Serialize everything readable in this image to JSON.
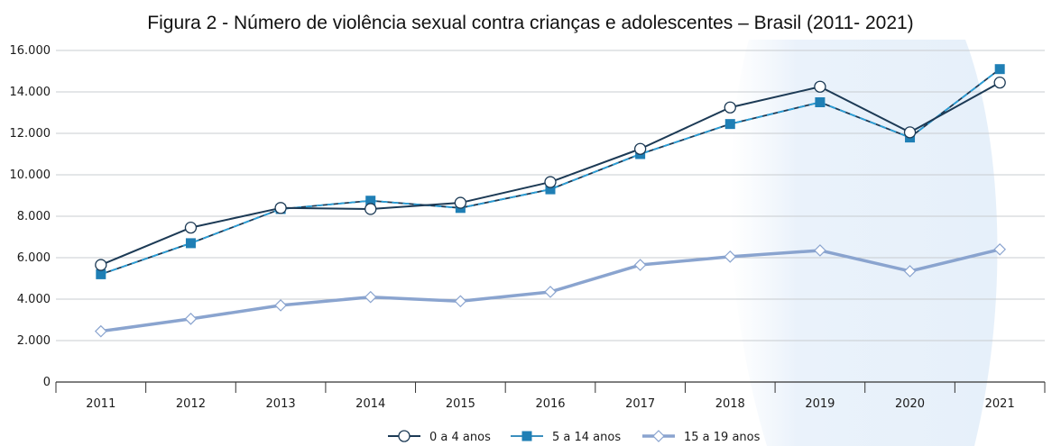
{
  "chart_data": {
    "type": "line",
    "title": "Figura 2 - Número de violência sexual contra crianças e adolescentes – Brasil (2011- 2021)",
    "categories": [
      "2011",
      "2012",
      "2013",
      "2014",
      "2015",
      "2016",
      "2017",
      "2018",
      "2019",
      "2020",
      "2021"
    ],
    "ylim": [
      0,
      16000
    ],
    "yticks": [
      0,
      2000,
      4000,
      6000,
      8000,
      10000,
      12000,
      14000,
      16000
    ],
    "ytick_labels": [
      "0",
      "2.000",
      "4.000",
      "6.000",
      "8.000",
      "10.000",
      "12.000",
      "14.000",
      "16.000"
    ],
    "grid": "horizontal",
    "legend_position": "bottom-center",
    "series": [
      {
        "name": "0 a 4 anos",
        "color": "#1c3a55",
        "marker": "circle",
        "values": [
          5650,
          7450,
          8400,
          8350,
          8650,
          9650,
          11250,
          13250,
          14250,
          12050,
          14450
        ]
      },
      {
        "name": "5 a 14 anos",
        "color": "#1f7fb5",
        "marker": "square",
        "values": [
          5200,
          6700,
          8350,
          8750,
          8400,
          9300,
          11000,
          12450,
          13500,
          11800,
          15100
        ]
      },
      {
        "name": "15 a 19 anos",
        "color": "#8aa4cf",
        "marker": "diamond",
        "values": [
          2450,
          3050,
          3700,
          4100,
          3900,
          4350,
          5650,
          6050,
          6350,
          5350,
          6400
        ]
      }
    ]
  }
}
